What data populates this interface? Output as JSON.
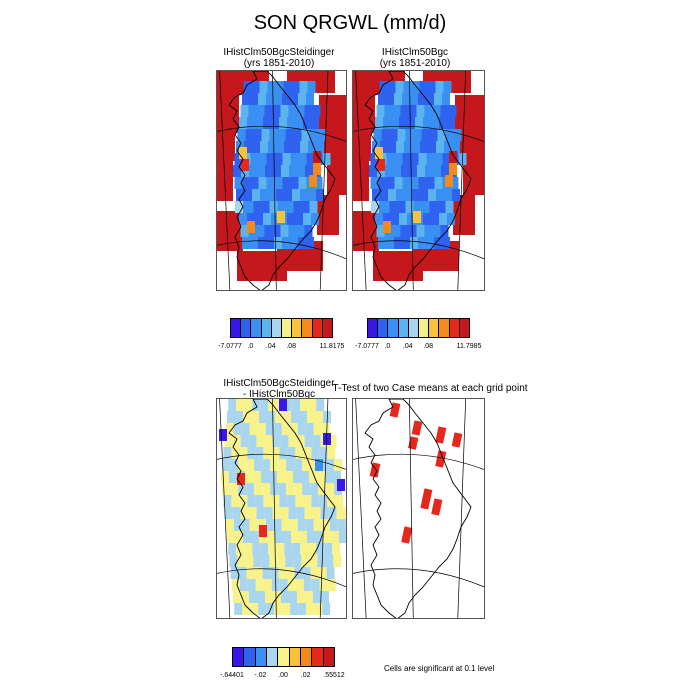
{
  "title": "SON QRGWL (mm/d)",
  "panels": {
    "p1": {
      "title_line1": "IHistClm50BgcSteidinger",
      "title_line2": "(yrs 1851-2010)"
    },
    "p2": {
      "title_line1": "IHistClm50Bgc",
      "title_line2": "(yrs 1851-2010)"
    },
    "p3": {
      "title_line1": "IHistClm50BgcSteidinger",
      "title_line2": "- IHistClm50Bgc"
    },
    "p4": {
      "title_line1": "T-Test of two Case means at each grid point"
    }
  },
  "colorbars": {
    "cb1": {
      "colors": [
        "#3a16e8",
        "#2f62ee",
        "#3a8ff2",
        "#5bb4f0",
        "#a9d6ee",
        "#f4f08c",
        "#f8c23a",
        "#f28a1c",
        "#e6271c",
        "#c4181c"
      ],
      "labels": [
        "-7.0777",
        ".0",
        ".04",
        ".08",
        "11.8175"
      ]
    },
    "cb2": {
      "colors": [
        "#3a16e8",
        "#2f62ee",
        "#3a8ff2",
        "#5bb4f0",
        "#a9d6ee",
        "#f4f08c",
        "#f8c23a",
        "#f28a1c",
        "#e6271c",
        "#c4181c"
      ],
      "labels": [
        "-7.0777",
        ".0",
        ".04",
        ".08",
        "11.7985"
      ]
    },
    "cb3": {
      "colors": [
        "#3a16e8",
        "#2f62ee",
        "#3a8ff2",
        "#a9d6ee",
        "#f7f28a",
        "#f8c23a",
        "#f28a1c",
        "#e6271c",
        "#c4181c"
      ],
      "labels": [
        "-.64401",
        "-.02",
        ".00",
        ".02",
        ".55512"
      ]
    }
  },
  "significance_note": "Cells are significant at 0.1 level",
  "chart_data": [
    {
      "type": "heatmap",
      "title": "IHistClm50BgcSteidinger (yrs 1851-2010)",
      "field": "SON QRGWL",
      "units": "mm/d",
      "colorbar_range": [
        -7.0777,
        11.8175
      ],
      "colorbar_ticks": [
        -7.0777,
        0,
        0.04,
        0.08,
        11.8175
      ]
    },
    {
      "type": "heatmap",
      "title": "IHistClm50Bgc (yrs 1851-2010)",
      "field": "SON QRGWL",
      "units": "mm/d",
      "colorbar_range": [
        -7.0777,
        11.7985
      ],
      "colorbar_ticks": [
        -7.0777,
        0,
        0.04,
        0.08,
        11.7985
      ]
    },
    {
      "type": "heatmap",
      "title": "IHistClm50BgcSteidinger - IHistClm50Bgc",
      "field": "difference",
      "colorbar_range": [
        -0.64401,
        0.55512
      ],
      "colorbar_ticks": [
        -0.64401,
        -0.02,
        0,
        0.02,
        0.55512
      ]
    },
    {
      "type": "heatmap",
      "title": "T-Test of two Case means at each grid point",
      "significance_level": 0.1
    }
  ]
}
